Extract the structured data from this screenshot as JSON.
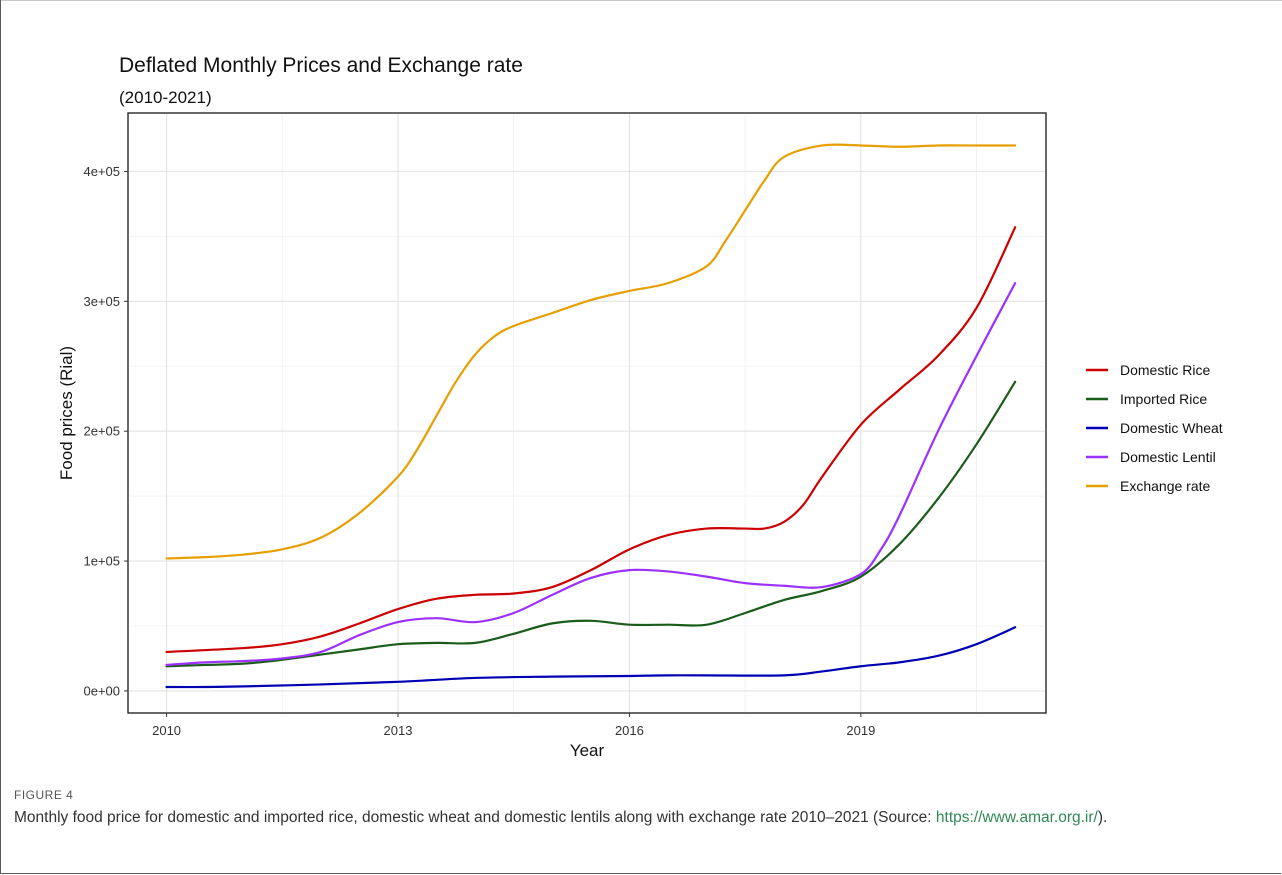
{
  "figure": {
    "label": "FIGURE 4",
    "caption": "Monthly food price for domestic and imported rice, domestic wheat and domestic lentils along with exchange rate 2010–2021 (Source: ",
    "caption_link": "https://www.amar.org.ir/",
    "caption_end": ")."
  },
  "chart_data": {
    "type": "line",
    "title": "Deflated Monthly Prices and Exchange rate",
    "subtitle": "(2010-2021)",
    "xlabel": "Year",
    "ylabel": "Food prices (Rial)",
    "xlim": [
      2009.5,
      2021.4
    ],
    "ylim": [
      -17000,
      445000
    ],
    "x_ticks": [
      2010,
      2013,
      2016,
      2019
    ],
    "x_tick_labels": [
      "2010",
      "2013",
      "2016",
      "2019"
    ],
    "y_ticks": [
      0,
      100000,
      200000,
      300000,
      400000
    ],
    "y_tick_labels": [
      "0e+00",
      "1e+05",
      "2e+05",
      "3e+05",
      "4e+05"
    ],
    "grid": true,
    "legend_position": "right",
    "series": [
      {
        "name": "Domestic Rice",
        "color": "#cc0000",
        "points": [
          [
            2010.0,
            30000
          ],
          [
            2011.0,
            33000
          ],
          [
            2011.5,
            36000
          ],
          [
            2012.0,
            42000
          ],
          [
            2012.5,
            52000
          ],
          [
            2013.0,
            63000
          ],
          [
            2013.5,
            71000
          ],
          [
            2014.0,
            74000
          ],
          [
            2014.5,
            75000
          ],
          [
            2015.0,
            80000
          ],
          [
            2015.5,
            93000
          ],
          [
            2016.0,
            109000
          ],
          [
            2016.5,
            120000
          ],
          [
            2017.0,
            125000
          ],
          [
            2017.5,
            125000
          ],
          [
            2017.75,
            125000
          ],
          [
            2018.0,
            130000
          ],
          [
            2018.25,
            143000
          ],
          [
            2018.5,
            165000
          ],
          [
            2019.0,
            205000
          ],
          [
            2019.5,
            232000
          ],
          [
            2020.0,
            258000
          ],
          [
            2020.5,
            295000
          ],
          [
            2021.0,
            357000
          ]
        ]
      },
      {
        "name": "Imported Rice",
        "color": "#1a5c1a",
        "points": [
          [
            2010.0,
            19000
          ],
          [
            2010.5,
            20000
          ],
          [
            2011.0,
            21000
          ],
          [
            2011.5,
            24000
          ],
          [
            2012.0,
            28000
          ],
          [
            2012.5,
            32000
          ],
          [
            2013.0,
            36000
          ],
          [
            2013.5,
            37000
          ],
          [
            2014.0,
            37000
          ],
          [
            2014.5,
            44000
          ],
          [
            2015.0,
            52000
          ],
          [
            2015.5,
            54000
          ],
          [
            2016.0,
            51000
          ],
          [
            2016.5,
            51000
          ],
          [
            2017.0,
            51000
          ],
          [
            2017.5,
            60000
          ],
          [
            2018.0,
            70000
          ],
          [
            2018.5,
            77000
          ],
          [
            2019.0,
            88000
          ],
          [
            2019.5,
            113000
          ],
          [
            2020.0,
            148000
          ],
          [
            2020.5,
            190000
          ],
          [
            2021.0,
            238000
          ]
        ]
      },
      {
        "name": "Domestic Wheat",
        "color": "#0000b3",
        "points": [
          [
            2010.0,
            3000
          ],
          [
            2010.5,
            3000
          ],
          [
            2011.0,
            3500
          ],
          [
            2012.0,
            5000
          ],
          [
            2013.0,
            7000
          ],
          [
            2014.0,
            10000
          ],
          [
            2015.0,
            11000
          ],
          [
            2016.0,
            11500
          ],
          [
            2016.5,
            12000
          ],
          [
            2017.0,
            12000
          ],
          [
            2018.0,
            12000
          ],
          [
            2018.5,
            15000
          ],
          [
            2019.0,
            19000
          ],
          [
            2019.5,
            22000
          ],
          [
            2020.0,
            27000
          ],
          [
            2020.5,
            36000
          ],
          [
            2021.0,
            49000
          ]
        ]
      },
      {
        "name": "Domestic Lentil",
        "color": "#9b30ff",
        "points": [
          [
            2010.0,
            20000
          ],
          [
            2010.5,
            22000
          ],
          [
            2011.0,
            23000
          ],
          [
            2011.5,
            25000
          ],
          [
            2012.0,
            30000
          ],
          [
            2012.5,
            43000
          ],
          [
            2013.0,
            53000
          ],
          [
            2013.5,
            56000
          ],
          [
            2014.0,
            53000
          ],
          [
            2014.5,
            60000
          ],
          [
            2015.0,
            74000
          ],
          [
            2015.5,
            87000
          ],
          [
            2016.0,
            93000
          ],
          [
            2016.5,
            92000
          ],
          [
            2017.0,
            88000
          ],
          [
            2017.5,
            83000
          ],
          [
            2018.0,
            81000
          ],
          [
            2018.5,
            80000
          ],
          [
            2019.0,
            90000
          ],
          [
            2019.25,
            108000
          ],
          [
            2019.5,
            135000
          ],
          [
            2020.0,
            200000
          ],
          [
            2020.5,
            258000
          ],
          [
            2021.0,
            314000
          ]
        ]
      },
      {
        "name": "Exchange rate",
        "color": "#e69f00",
        "points": [
          [
            2010.0,
            102000
          ],
          [
            2010.5,
            103000
          ],
          [
            2011.0,
            105000
          ],
          [
            2011.5,
            109000
          ],
          [
            2012.0,
            118000
          ],
          [
            2012.5,
            137000
          ],
          [
            2013.0,
            165000
          ],
          [
            2013.25,
            186000
          ],
          [
            2013.5,
            212000
          ],
          [
            2013.75,
            238000
          ],
          [
            2014.0,
            259000
          ],
          [
            2014.25,
            273000
          ],
          [
            2014.5,
            281000
          ],
          [
            2015.0,
            291000
          ],
          [
            2015.5,
            301000
          ],
          [
            2016.0,
            308000
          ],
          [
            2016.5,
            314000
          ],
          [
            2017.0,
            327000
          ],
          [
            2017.25,
            347000
          ],
          [
            2017.5,
            370000
          ],
          [
            2017.75,
            393000
          ],
          [
            2018.0,
            411000
          ],
          [
            2018.5,
            420000
          ],
          [
            2019.0,
            420000
          ],
          [
            2019.5,
            419000
          ],
          [
            2020.0,
            420000
          ],
          [
            2020.5,
            420000
          ],
          [
            2021.0,
            420000
          ]
        ]
      }
    ]
  }
}
